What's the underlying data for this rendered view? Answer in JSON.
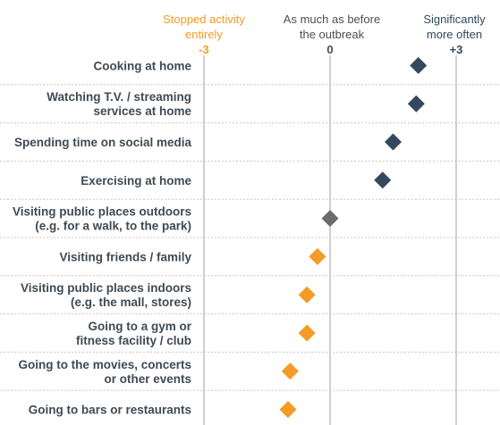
{
  "chart_data": {
    "type": "scatter",
    "headers": {
      "negative": [
        "Stopped activity",
        "entirely"
      ],
      "neutral": [
        "As much as before",
        "the outbreak"
      ],
      "positive": [
        "Significantly",
        "more often"
      ]
    },
    "ticks": [
      {
        "value": -3,
        "label": "-3",
        "color": "#f39a27"
      },
      {
        "value": 0,
        "label": "0",
        "color": "#4a4f55"
      },
      {
        "value": 3,
        "label": "+3",
        "color": "#2f4a60"
      }
    ],
    "xlim": [
      -3,
      3
    ],
    "grid": true,
    "colors": {
      "increase": "#34495e",
      "neutral": "#6b6b6b",
      "decrease": "#f39a27",
      "gridline": "#b0b0b0",
      "separator": "#c8c8c8",
      "label": "#3f4a54"
    },
    "categories": [
      {
        "label": [
          "Cooking at home"
        ],
        "value": 2.1
      },
      {
        "label": [
          "Watching T.V. / streaming",
          "services at home"
        ],
        "value": 2.05
      },
      {
        "label": [
          "Spending time on social media"
        ],
        "value": 1.5
      },
      {
        "label": [
          "Exercising at home"
        ],
        "value": 1.25
      },
      {
        "label": [
          "Visiting public places outdoors",
          "(e.g. for a walk, to the park)"
        ],
        "value": 0.0
      },
      {
        "label": [
          "Visiting friends / family"
        ],
        "value": -0.3
      },
      {
        "label": [
          "Visiting public places indoors",
          "(e.g. the mall, stores)"
        ],
        "value": -0.55
      },
      {
        "label": [
          "Going to a gym or",
          "fitness facility / club"
        ],
        "value": -0.55
      },
      {
        "label": [
          "Going to the movies, concerts",
          "or other events"
        ],
        "value": -0.95
      },
      {
        "label": [
          "Going to bars or restaurants"
        ],
        "value": -1.0
      }
    ]
  }
}
